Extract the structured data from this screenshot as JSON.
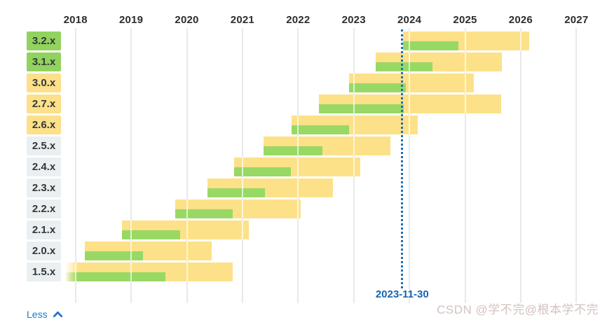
{
  "chart_data": {
    "type": "bar",
    "subtype": "horizontal-gantt-timeline-of-version-support",
    "title": "",
    "x_axis": {
      "tick_labels": [
        "2018",
        "2019",
        "2020",
        "2021",
        "2022",
        "2023",
        "2024",
        "2025",
        "2026",
        "2027"
      ],
      "range": [
        2017.8,
        2027.4
      ],
      "grid": "vertical light-gray year gridlines, shown as white gaps where they cross bars"
    },
    "legend_position": "none",
    "rows": [
      {
        "version": "3.2.x",
        "badge": "green",
        "start": 2023.88,
        "active_end": 2024.88,
        "support_end": 2026.15,
        "fade_in": false
      },
      {
        "version": "3.1.x",
        "badge": "green",
        "start": 2023.4,
        "active_end": 2024.42,
        "support_end": 2025.66,
        "fade_in": false
      },
      {
        "version": "3.0.x",
        "badge": "yellow",
        "start": 2022.91,
        "active_end": 2023.93,
        "support_end": 2025.16,
        "fade_in": false
      },
      {
        "version": "2.7.x",
        "badge": "yellow",
        "start": 2022.38,
        "active_end": 2023.9,
        "support_end": 2025.65,
        "fade_in": false
      },
      {
        "version": "2.6.x",
        "badge": "yellow",
        "start": 2021.88,
        "active_end": 2022.91,
        "support_end": 2024.15,
        "fade_in": false
      },
      {
        "version": "2.5.x",
        "badge": "gray",
        "start": 2021.38,
        "active_end": 2022.44,
        "support_end": 2023.66,
        "fade_in": false
      },
      {
        "version": "2.4.x",
        "badge": "gray",
        "start": 2020.85,
        "active_end": 2021.87,
        "support_end": 2023.12,
        "fade_in": false
      },
      {
        "version": "2.3.x",
        "badge": "gray",
        "start": 2020.37,
        "active_end": 2021.41,
        "support_end": 2022.63,
        "fade_in": false
      },
      {
        "version": "2.2.x",
        "badge": "gray",
        "start": 2019.79,
        "active_end": 2020.82,
        "support_end": 2022.05,
        "fade_in": false
      },
      {
        "version": "2.1.x",
        "badge": "gray",
        "start": 2018.83,
        "active_end": 2019.88,
        "support_end": 2021.12,
        "fade_in": false
      },
      {
        "version": "2.0.x",
        "badge": "gray",
        "start": 2018.17,
        "active_end": 2019.21,
        "support_end": 2020.45,
        "fade_in": false
      },
      {
        "version": "1.5.x",
        "badge": "gray",
        "start": 2017.82,
        "active_end": 2019.61,
        "support_end": 2020.83,
        "fade_in": true
      }
    ],
    "marker": {
      "label": "2023-11-30",
      "x_year": 2023.87,
      "style": "vertical dotted blue line with bold date label underneath"
    }
  },
  "colors": {
    "bar_yellow": "#fde189",
    "bar_green": "#97d964",
    "badge_green": "#92d25f",
    "badge_yellow": "#fce08a",
    "badge_gray": "#eaeff1",
    "axis_text": "#2d2d2d",
    "gridline": "#e8eaea",
    "marker_blue": "#1e6fb5",
    "marker_date_blue": "#1565af",
    "link_blue": "#2077c6",
    "watermark_text": "#d3c2c0"
  },
  "footer": {
    "less_label": "Less"
  },
  "watermark": {
    "text": "CSDN @学不完@根本学不完"
  }
}
